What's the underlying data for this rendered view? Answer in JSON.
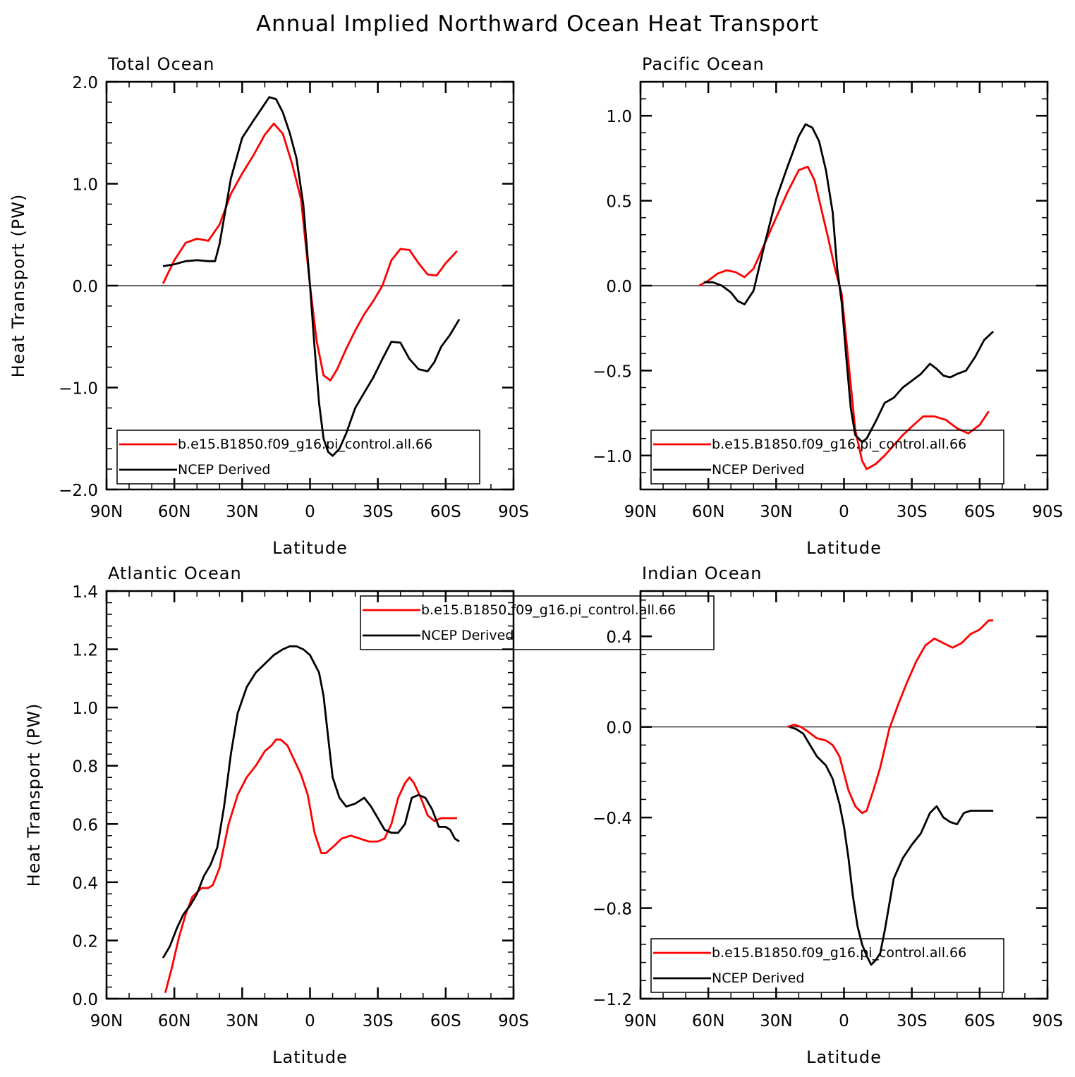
{
  "title": "Annual Implied Northward Ocean Heat Transport",
  "colors": {
    "model": "#ff0000",
    "obs": "#000000"
  },
  "chart_data": [
    {
      "type": "line",
      "title": "Total Ocean",
      "xlabel": "Latitude",
      "ylabel": "Heat Transport (PW)",
      "xlim": [
        90,
        -90
      ],
      "ylim": [
        -2.0,
        2.0
      ],
      "xticks": [
        90,
        60,
        30,
        0,
        -30,
        -60,
        -90
      ],
      "xtick_labels": [
        "90N",
        "60N",
        "30N",
        "0",
        "30S",
        "60S",
        "90S"
      ],
      "yticks": [
        -2.0,
        -1.0,
        0.0,
        1.0,
        2.0
      ],
      "ytick_labels": [
        "−2.0",
        "−1.0",
        "0.0",
        "1.0",
        "2.0"
      ],
      "legend": {
        "position": "bottom-left"
      },
      "series": [
        {
          "name": "b.e15.B1850.f09_g16.pi_control.all.66",
          "color": "#ff0000",
          "x": [
            65,
            60,
            55,
            50,
            45,
            40,
            35,
            30,
            25,
            20,
            16,
            12,
            8,
            4,
            0,
            -3,
            -6,
            -9,
            -12,
            -16,
            -20,
            -24,
            -28,
            -32,
            -36,
            -40,
            -44,
            -48,
            -52,
            -56,
            -60,
            -65
          ],
          "y": [
            0.02,
            0.25,
            0.42,
            0.46,
            0.44,
            0.6,
            0.9,
            1.1,
            1.28,
            1.48,
            1.59,
            1.49,
            1.2,
            0.85,
            0.0,
            -0.55,
            -0.88,
            -0.93,
            -0.82,
            -0.62,
            -0.44,
            -0.28,
            -0.15,
            0.0,
            0.25,
            0.36,
            0.35,
            0.22,
            0.11,
            0.1,
            0.22,
            0.34
          ]
        },
        {
          "name": "NCEP Derived",
          "color": "#000000",
          "x": [
            65,
            60,
            55,
            50,
            45,
            42,
            40,
            35,
            30,
            25,
            18,
            15,
            12,
            9,
            6,
            3,
            0,
            -2,
            -4,
            -6,
            -8,
            -10,
            -13,
            -16,
            -20,
            -24,
            -28,
            -32,
            -36,
            -40,
            -44,
            -48,
            -52,
            -55,
            -58,
            -62,
            -66
          ],
          "y": [
            0.19,
            0.21,
            0.24,
            0.25,
            0.24,
            0.24,
            0.41,
            1.05,
            1.45,
            1.62,
            1.85,
            1.83,
            1.7,
            1.5,
            1.25,
            0.8,
            0.0,
            -0.6,
            -1.15,
            -1.5,
            -1.63,
            -1.67,
            -1.6,
            -1.45,
            -1.2,
            -1.05,
            -0.9,
            -0.72,
            -0.55,
            -0.56,
            -0.72,
            -0.82,
            -0.84,
            -0.75,
            -0.6,
            -0.48,
            -0.33
          ]
        }
      ]
    },
    {
      "type": "line",
      "title": "Pacific Ocean",
      "xlabel": "Latitude",
      "ylabel": "",
      "xlim": [
        90,
        -90
      ],
      "ylim": [
        -1.2,
        1.2
      ],
      "xticks": [
        90,
        60,
        30,
        0,
        -30,
        -60,
        -90
      ],
      "xtick_labels": [
        "90N",
        "60N",
        "30N",
        "0",
        "30S",
        "60S",
        "90S"
      ],
      "yticks": [
        -1.0,
        -0.5,
        0.0,
        0.5,
        1.0
      ],
      "ytick_labels": [
        "−1.0",
        "−0.5",
        "0.0",
        "0.5",
        "1.0"
      ],
      "legend": {
        "position": "bottom-left"
      },
      "series": [
        {
          "name": "b.e15.B1850.f09_g16.pi_control.all.66",
          "color": "#ff0000",
          "x": [
            64,
            60,
            56,
            52,
            48,
            44,
            40,
            35,
            30,
            25,
            20,
            16,
            13,
            10,
            7,
            4,
            1,
            -2,
            -5,
            -8,
            -10,
            -14,
            -18,
            -22,
            -26,
            -30,
            -35,
            -40,
            -45,
            -50,
            -55,
            -60,
            -64
          ],
          "y": [
            0.0,
            0.03,
            0.07,
            0.09,
            0.08,
            0.05,
            0.1,
            0.25,
            0.4,
            0.55,
            0.68,
            0.7,
            0.62,
            0.45,
            0.28,
            0.1,
            -0.05,
            -0.45,
            -0.85,
            -1.03,
            -1.08,
            -1.05,
            -1.0,
            -0.94,
            -0.88,
            -0.83,
            -0.77,
            -0.77,
            -0.79,
            -0.84,
            -0.87,
            -0.82,
            -0.74
          ]
        },
        {
          "name": "NCEP Derived",
          "color": "#000000",
          "x": [
            62,
            58,
            54,
            50,
            47,
            44,
            40,
            35,
            30,
            25,
            20,
            17,
            14,
            11,
            8,
            5,
            3,
            1,
            -1,
            -3,
            -5,
            -8,
            -10,
            -14,
            -18,
            -22,
            -26,
            -30,
            -34,
            -38,
            -41,
            -44,
            -47,
            -50,
            -54,
            -58,
            -62,
            -66
          ],
          "y": [
            0.02,
            0.02,
            0.0,
            -0.04,
            -0.09,
            -0.11,
            -0.03,
            0.25,
            0.51,
            0.7,
            0.88,
            0.95,
            0.93,
            0.85,
            0.68,
            0.43,
            0.1,
            -0.1,
            -0.42,
            -0.72,
            -0.88,
            -0.92,
            -0.9,
            -0.8,
            -0.69,
            -0.66,
            -0.6,
            -0.56,
            -0.52,
            -0.46,
            -0.49,
            -0.53,
            -0.54,
            -0.52,
            -0.5,
            -0.42,
            -0.32,
            -0.27
          ]
        }
      ]
    },
    {
      "type": "line",
      "title": "Atlantic Ocean",
      "xlabel": "Latitude",
      "ylabel": "Heat Transport (PW)",
      "xlim": [
        90,
        -90
      ],
      "ylim": [
        0.0,
        1.4
      ],
      "xticks": [
        90,
        60,
        30,
        0,
        -30,
        -60,
        -90
      ],
      "xtick_labels": [
        "90N",
        "60N",
        "30N",
        "0",
        "30S",
        "60S",
        "90S"
      ],
      "yticks": [
        0.0,
        0.2,
        0.4,
        0.6,
        0.8,
        1.0,
        1.2,
        1.4
      ],
      "ytick_labels": [
        "0.0",
        "0.2",
        "0.4",
        "0.6",
        "0.8",
        "1.0",
        "1.2",
        "1.4"
      ],
      "legend": {
        "position": "top-right"
      },
      "series": [
        {
          "name": "b.e15.B1850.f09_g16.pi_control.all.66",
          "color": "#ff0000",
          "x": [
            64,
            61,
            58,
            55,
            52,
            48,
            45,
            43,
            40,
            36,
            32,
            28,
            24,
            20,
            17,
            15,
            13,
            10,
            7,
            4,
            1,
            -2,
            -5,
            -7,
            -10,
            -14,
            -18,
            -22,
            -26,
            -30,
            -33,
            -36,
            -39,
            -42,
            -44,
            -46,
            -49,
            -52,
            -55,
            -58,
            -62,
            -65
          ],
          "y": [
            0.02,
            0.11,
            0.21,
            0.29,
            0.35,
            0.38,
            0.38,
            0.39,
            0.45,
            0.6,
            0.7,
            0.76,
            0.8,
            0.85,
            0.87,
            0.89,
            0.89,
            0.87,
            0.82,
            0.77,
            0.7,
            0.57,
            0.5,
            0.5,
            0.52,
            0.55,
            0.56,
            0.55,
            0.54,
            0.54,
            0.55,
            0.6,
            0.69,
            0.74,
            0.76,
            0.74,
            0.69,
            0.63,
            0.61,
            0.62,
            0.62,
            0.62
          ]
        },
        {
          "name": "NCEP Derived",
          "color": "#000000",
          "x": [
            65,
            62,
            59,
            56,
            53,
            50,
            47,
            44,
            41,
            38,
            35,
            32,
            28,
            24,
            20,
            16,
            14,
            12,
            9,
            6,
            3,
            0,
            -2,
            -4,
            -6,
            -8,
            -10,
            -13,
            -16,
            -20,
            -24,
            -27,
            -30,
            -33,
            -36,
            -39,
            -42,
            -45,
            -48,
            -51,
            -54,
            -57,
            -60,
            -62,
            -64,
            -66
          ],
          "y": [
            0.14,
            0.18,
            0.24,
            0.29,
            0.32,
            0.36,
            0.42,
            0.46,
            0.52,
            0.66,
            0.84,
            0.98,
            1.07,
            1.12,
            1.15,
            1.18,
            1.19,
            1.2,
            1.21,
            1.21,
            1.2,
            1.18,
            1.15,
            1.12,
            1.04,
            0.9,
            0.76,
            0.69,
            0.66,
            0.67,
            0.69,
            0.66,
            0.62,
            0.58,
            0.57,
            0.57,
            0.6,
            0.69,
            0.7,
            0.69,
            0.65,
            0.59,
            0.59,
            0.58,
            0.55,
            0.54
          ]
        }
      ]
    },
    {
      "type": "line",
      "title": "Indian Ocean",
      "xlabel": "Latitude",
      "ylabel": "",
      "xlim": [
        90,
        -90
      ],
      "ylim": [
        -1.2,
        0.6
      ],
      "xticks": [
        90,
        60,
        30,
        0,
        -30,
        -60,
        -90
      ],
      "xtick_labels": [
        "90N",
        "60N",
        "30N",
        "0",
        "30S",
        "60S",
        "90S"
      ],
      "yticks": [
        -1.2,
        -0.8,
        -0.4,
        0.0,
        0.4
      ],
      "ytick_labels": [
        "−1.2",
        "−0.8",
        "−0.4",
        "0.0",
        "0.4"
      ],
      "legend": {
        "position": "bottom-left"
      },
      "series": [
        {
          "name": "b.e15.B1850.f09_g16.pi_control.all.66",
          "color": "#ff0000",
          "x": [
            25,
            22,
            19,
            16,
            12,
            8,
            5,
            2,
            -2,
            -5,
            -8,
            -10,
            -13,
            -16,
            -20,
            -24,
            -28,
            -32,
            -36,
            -40,
            -44,
            -48,
            -52,
            -56,
            -60,
            -64,
            -66
          ],
          "y": [
            0.0,
            0.01,
            0.0,
            -0.02,
            -0.05,
            -0.06,
            -0.08,
            -0.13,
            -0.28,
            -0.35,
            -0.38,
            -0.37,
            -0.28,
            -0.18,
            -0.01,
            0.1,
            0.2,
            0.29,
            0.36,
            0.39,
            0.37,
            0.35,
            0.37,
            0.41,
            0.43,
            0.47,
            0.47
          ]
        },
        {
          "name": "NCEP Derived",
          "color": "#000000",
          "x": [
            24,
            21,
            18,
            15,
            12,
            8,
            5,
            2,
            0,
            -2,
            -4,
            -6,
            -8,
            -10,
            -12,
            -14,
            -16,
            -18,
            -22,
            -26,
            -30,
            -34,
            -38,
            -41,
            -44,
            -47,
            -50,
            -53,
            -56,
            -58,
            -62,
            -66
          ],
          "y": [
            0.0,
            -0.01,
            -0.03,
            -0.08,
            -0.13,
            -0.17,
            -0.23,
            -0.34,
            -0.44,
            -0.58,
            -0.75,
            -0.88,
            -0.96,
            -1.01,
            -1.05,
            -1.03,
            -1.0,
            -0.9,
            -0.67,
            -0.58,
            -0.52,
            -0.47,
            -0.38,
            -0.35,
            -0.4,
            -0.42,
            -0.43,
            -0.38,
            -0.37,
            -0.37,
            -0.37,
            -0.37
          ]
        }
      ]
    }
  ]
}
